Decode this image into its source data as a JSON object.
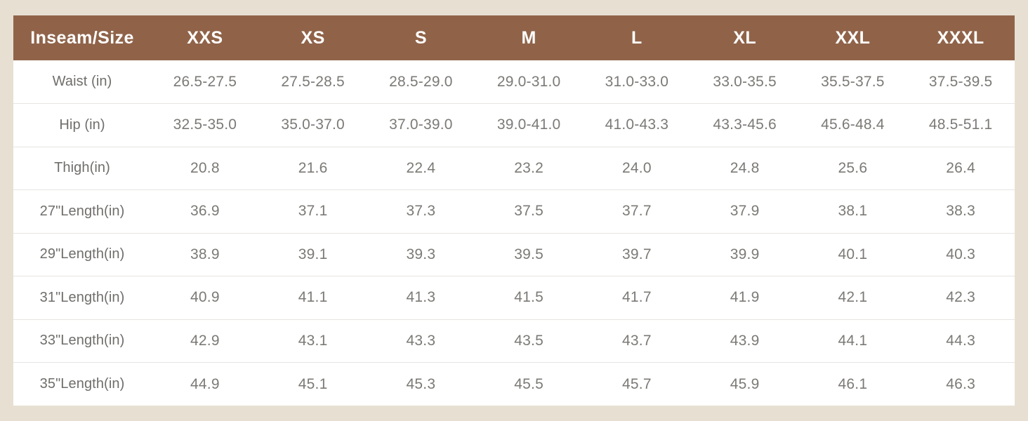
{
  "chart_data": {
    "type": "table",
    "columns": [
      "Inseam/Size",
      "XXS",
      "XS",
      "S",
      "M",
      "L",
      "XL",
      "XXL",
      "XXXL"
    ],
    "rows": [
      {
        "label": "Waist (in)",
        "values": [
          "26.5-27.5",
          "27.5-28.5",
          "28.5-29.0",
          "29.0-31.0",
          "31.0-33.0",
          "33.0-35.5",
          "35.5-37.5",
          "37.5-39.5"
        ]
      },
      {
        "label": "Hip (in)",
        "values": [
          "32.5-35.0",
          "35.0-37.0",
          "37.0-39.0",
          "39.0-41.0",
          "41.0-43.3",
          "43.3-45.6",
          "45.6-48.4",
          "48.5-51.1"
        ]
      },
      {
        "label": "Thigh(in)",
        "values": [
          "20.8",
          "21.6",
          "22.4",
          "23.2",
          "24.0",
          "24.8",
          "25.6",
          "26.4"
        ]
      },
      {
        "label": "27\"Length(in)",
        "values": [
          "36.9",
          "37.1",
          "37.3",
          "37.5",
          "37.7",
          "37.9",
          "38.1",
          "38.3"
        ]
      },
      {
        "label": "29\"Length(in)",
        "values": [
          "38.9",
          "39.1",
          "39.3",
          "39.5",
          "39.7",
          "39.9",
          "40.1",
          "40.3"
        ]
      },
      {
        "label": "31\"Length(in)",
        "values": [
          "40.9",
          "41.1",
          "41.3",
          "41.5",
          "41.7",
          "41.9",
          "42.1",
          "42.3"
        ]
      },
      {
        "label": "33\"Length(in)",
        "values": [
          "42.9",
          "43.1",
          "43.3",
          "43.5",
          "43.7",
          "43.9",
          "44.1",
          "44.3"
        ]
      },
      {
        "label": "35\"Length(in)",
        "values": [
          "44.9",
          "45.1",
          "45.3",
          "45.5",
          "45.7",
          "45.9",
          "46.1",
          "46.3"
        ]
      }
    ]
  },
  "colors": {
    "page_bg": "#e7e0d2",
    "header_bg": "#906349",
    "header_text": "#ffffff",
    "row_bg": "#ffffff",
    "label_text": "#6f6e6b",
    "value_text": "#7b7a76",
    "divider": "#e6e5e2"
  }
}
